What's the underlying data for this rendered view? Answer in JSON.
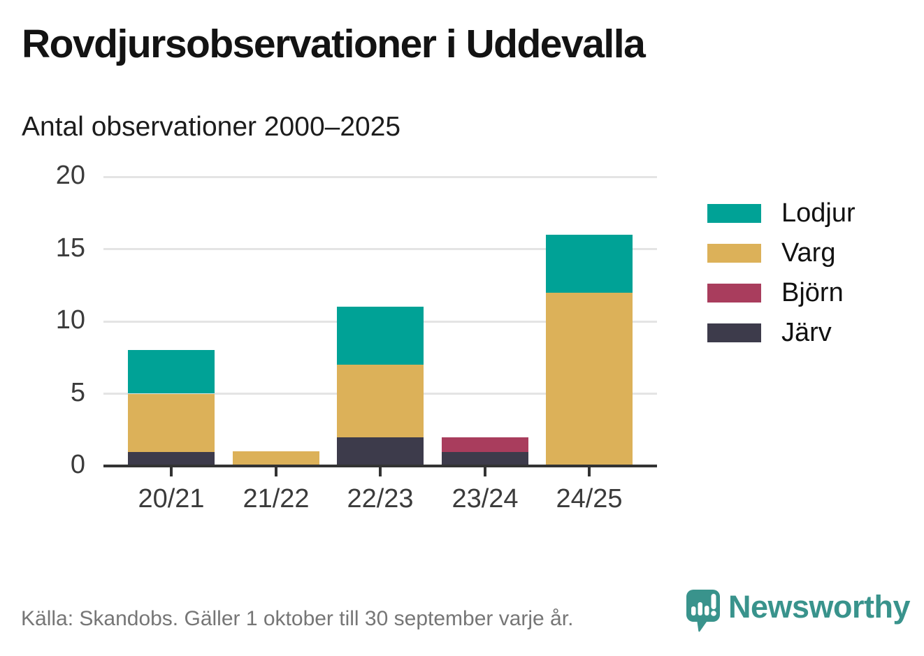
{
  "header": {
    "title": "Rovdjursobservationer i Uddevalla",
    "subtitle": "Antal observationer 2000–2025"
  },
  "chart_data": {
    "type": "bar",
    "stacked": true,
    "title": "Rovdjursobservationer i Uddevalla",
    "subtitle": "Antal observationer 2000–2025",
    "categories": [
      "20/21",
      "21/22",
      "22/23",
      "23/24",
      "24/25"
    ],
    "series": [
      {
        "name": "Lodjur",
        "color": "#00a296",
        "values": [
          3,
          0,
          4,
          0,
          4
        ]
      },
      {
        "name": "Varg",
        "color": "#dcb159",
        "values": [
          4,
          1,
          5,
          0,
          12
        ]
      },
      {
        "name": "Björn",
        "color": "#a93d5d",
        "values": [
          0,
          0,
          0,
          1,
          0
        ]
      },
      {
        "name": "Järv",
        "color": "#3d3b4b",
        "values": [
          1,
          0,
          2,
          1,
          0
        ]
      }
    ],
    "stack_order_bottom_to_top": [
      "Järv",
      "Björn",
      "Varg",
      "Lodjur"
    ],
    "totals": [
      8,
      1,
      11,
      2,
      16
    ],
    "xlabel": "",
    "ylabel": "",
    "ylim": [
      0,
      20
    ],
    "yticks": [
      0,
      5,
      10,
      15,
      20
    ],
    "grid": true,
    "legend_position": "right"
  },
  "legend": {
    "items": [
      {
        "label": "Lodjur",
        "color": "#00a296"
      },
      {
        "label": "Varg",
        "color": "#dcb159"
      },
      {
        "label": "Björn",
        "color": "#a93d5d"
      },
      {
        "label": "Järv",
        "color": "#3d3b4b"
      }
    ]
  },
  "footer": {
    "source": "Källa: Skandobs. Gäller 1 oktober till 30 september varje år.",
    "brand": "Newsworthy",
    "brand_color": "#39938c"
  }
}
